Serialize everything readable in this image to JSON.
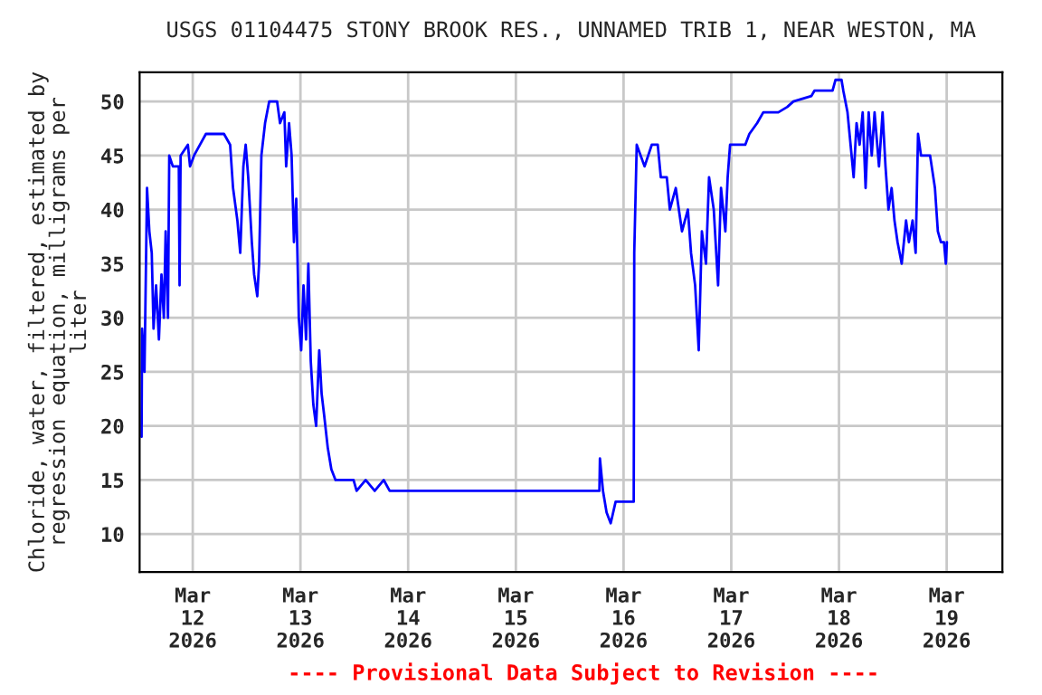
{
  "chart_data": {
    "type": "line",
    "title": "USGS 01104475 STONY BROOK RES., UNNAMED TRIB 1, NEAR WESTON, MA",
    "ylabel": "Chloride, water, filtered, estimated by\nregression equation, milligrams per\nliter",
    "annotations": [
      "---- Provisional Data Subject to Revision ----"
    ],
    "x": [
      "2026-03-11T12:36",
      "2026-03-11T12:43",
      "2026-03-11T13:15",
      "2026-03-11T13:49",
      "2026-03-11T14:20",
      "2026-03-11T14:52",
      "2026-03-11T15:16",
      "2026-03-11T15:50",
      "2026-03-11T16:28",
      "2026-03-11T17:02",
      "2026-03-11T17:34",
      "2026-03-11T17:58",
      "2026-03-11T18:29",
      "2026-03-11T18:46",
      "2026-03-11T19:34",
      "2026-03-11T20:54",
      "2026-03-11T21:04",
      "2026-03-11T21:18",
      "2026-03-11T22:55",
      "2026-03-11T23:24",
      "2026-03-12T00:17",
      "2026-03-12T01:37",
      "2026-03-12T02:56",
      "2026-03-12T04:57",
      "2026-03-12T06:58",
      "2026-03-12T08:20",
      "2026-03-12T08:59",
      "2026-03-12T09:57",
      "2026-03-12T10:35",
      "2026-03-12T11:17",
      "2026-03-12T11:48",
      "2026-03-12T12:22",
      "2026-03-12T13:10",
      "2026-03-12T13:41",
      "2026-03-12T14:23",
      "2026-03-12T14:47",
      "2026-03-12T15:18",
      "2026-03-12T16:07",
      "2026-03-12T17:02",
      "2026-03-12T18:48",
      "2026-03-12T19:27",
      "2026-03-12T20:25",
      "2026-03-12T20:49",
      "2026-03-12T21:28",
      "2026-03-12T22:02",
      "2026-03-12T22:33",
      "2026-03-12T23:04",
      "2026-03-12T23:38",
      "2026-03-13T00:10",
      "2026-03-13T00:41",
      "2026-03-13T01:15",
      "2026-03-13T01:46",
      "2026-03-13T02:18",
      "2026-03-13T02:52",
      "2026-03-13T03:30",
      "2026-03-13T04:11",
      "2026-03-13T04:43",
      "2026-03-13T05:17",
      "2026-03-13T06:05",
      "2026-03-13T06:53",
      "2026-03-13T07:49",
      "2026-03-13T11:50",
      "2026-03-13T12:31",
      "2026-03-13T14:32",
      "2026-03-13T16:33",
      "2026-03-13T18:34",
      "2026-03-13T19:53",
      "2026-03-15T18:37",
      "2026-03-15T18:44",
      "2026-03-15T19:25",
      "2026-03-15T20:13",
      "2026-03-15T21:08",
      "2026-03-15T22:14",
      "2026-03-16T02:16",
      "2026-03-16T02:23",
      "2026-03-16T02:56",
      "2026-03-16T04:41",
      "2026-03-16T06:17",
      "2026-03-16T07:37",
      "2026-03-16T08:18",
      "2026-03-16T09:38",
      "2026-03-16T10:19",
      "2026-03-16T11:38",
      "2026-03-16T13:01",
      "2026-03-16T14:20",
      "2026-03-16T15:02",
      "2026-03-16T15:57",
      "2026-03-16T16:45",
      "2026-03-16T17:27",
      "2026-03-16T18:22",
      "2026-03-16T19:03",
      "2026-03-16T20:06",
      "2026-03-16T21:04",
      "2026-03-16T21:43",
      "2026-03-16T22:41",
      "2026-03-16T23:12",
      "2026-03-16T23:44",
      "2026-03-17T03:07",
      "2026-03-17T04:02",
      "2026-03-17T05:46",
      "2026-03-17T07:08",
      "2026-03-17T10:29",
      "2026-03-17T12:30",
      "2026-03-17T13:50",
      "2026-03-17T17:51",
      "2026-03-17T18:32",
      "2026-03-17T22:34",
      "2026-03-17T23:14",
      "2026-03-18T00:34",
      "2026-03-18T00:58",
      "2026-03-18T01:54",
      "2026-03-18T02:35",
      "2026-03-18T03:16",
      "2026-03-18T03:55",
      "2026-03-18T04:36",
      "2026-03-18T05:17",
      "2026-03-18T05:56",
      "2026-03-18T06:37",
      "2026-03-18T07:18",
      "2026-03-18T07:56",
      "2026-03-18T08:55",
      "2026-03-18T09:43",
      "2026-03-18T10:22",
      "2026-03-18T11:02",
      "2026-03-18T11:44",
      "2026-03-18T12:22",
      "2026-03-18T13:03",
      "2026-03-18T13:59",
      "2026-03-18T14:57",
      "2026-03-18T15:35",
      "2026-03-18T16:24",
      "2026-03-18T17:05",
      "2026-03-18T17:37",
      "2026-03-18T18:17",
      "2026-03-18T19:23",
      "2026-03-18T20:18",
      "2026-03-18T21:23",
      "2026-03-18T22:02",
      "2026-03-18T22:43",
      "2026-03-18T23:24",
      "2026-03-18T23:49",
      "2026-03-19T00:03"
    ],
    "series": [
      {
        "color": "#0000ff",
        "values": [
          19,
          29,
          25,
          42,
          38,
          36,
          29,
          33,
          28,
          34,
          30,
          38,
          30,
          45,
          44,
          44,
          33,
          45,
          46,
          44,
          45,
          46,
          47,
          47,
          47,
          46,
          42,
          39,
          36,
          44,
          46,
          43,
          37,
          34,
          32,
          35,
          45,
          48,
          50,
          50,
          48,
          49,
          44,
          48,
          45,
          37,
          41,
          30,
          27,
          33,
          28,
          35,
          26,
          22,
          20,
          27,
          23,
          21,
          18,
          16,
          15,
          15,
          14,
          15,
          14,
          15,
          14,
          14,
          17,
          14,
          12,
          11,
          13,
          13,
          36,
          46,
          44,
          46,
          46,
          43,
          43,
          40,
          42,
          38,
          40,
          36,
          33,
          27,
          38,
          35,
          43,
          40,
          33,
          42,
          38,
          43,
          46,
          46,
          47,
          48,
          49,
          49,
          49.5,
          50,
          50.5,
          51,
          51,
          52,
          52,
          51,
          49,
          46,
          43,
          48,
          46,
          49,
          42,
          49,
          45,
          49,
          44,
          49,
          44,
          40,
          42,
          39,
          37,
          35,
          39,
          37,
          39,
          36,
          47,
          45,
          45,
          45,
          42,
          38,
          37,
          37,
          35,
          37
        ]
      }
    ],
    "xlim": [
      "2026-03-11T12:10",
      "2026-03-19T12:25"
    ],
    "xticks": [
      {
        "value": "2026-03-12",
        "label": "Mar\n12\n2026"
      },
      {
        "value": "2026-03-13",
        "label": "Mar\n13\n2026"
      },
      {
        "value": "2026-03-14",
        "label": "Mar\n14\n2026"
      },
      {
        "value": "2026-03-15",
        "label": "Mar\n15\n2026"
      },
      {
        "value": "2026-03-16",
        "label": "Mar\n16\n2026"
      },
      {
        "value": "2026-03-17",
        "label": "Mar\n17\n2026"
      },
      {
        "value": "2026-03-18",
        "label": "Mar\n18\n2026"
      },
      {
        "value": "2026-03-19",
        "label": "Mar\n19\n2026"
      }
    ],
    "ylim": [
      6.5,
      52.7
    ],
    "yticks": [
      10,
      15,
      20,
      25,
      30,
      35,
      40,
      45,
      50
    ],
    "grid": true
  }
}
